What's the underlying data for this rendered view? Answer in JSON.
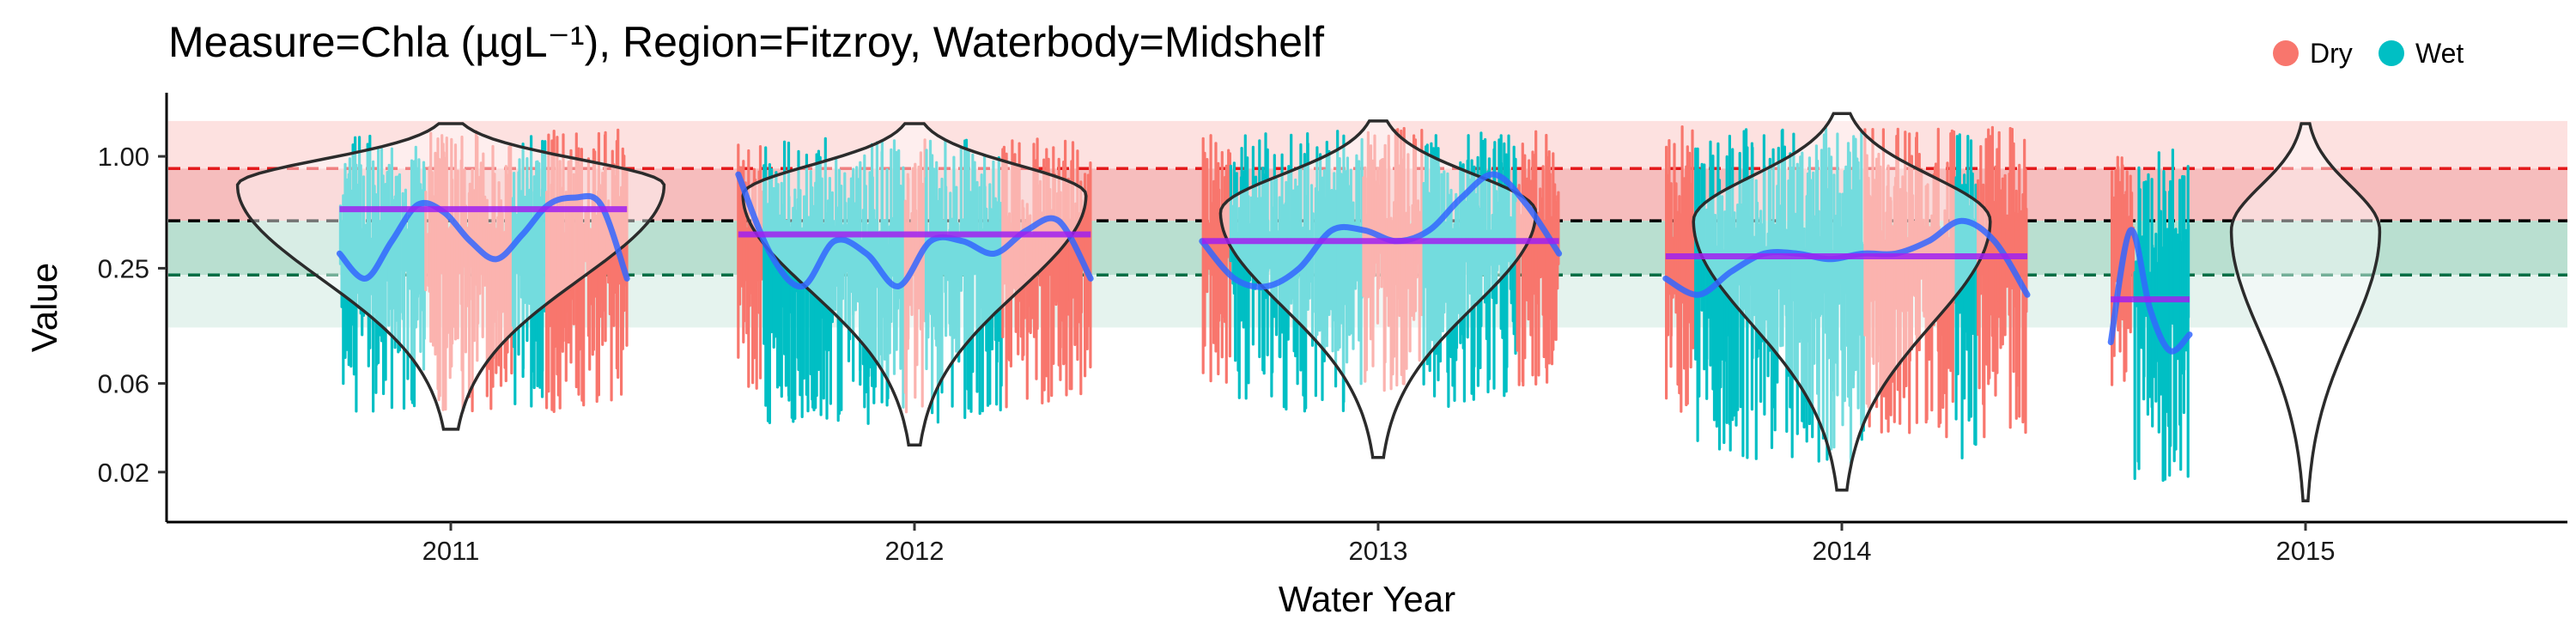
{
  "chart_data": {
    "type": "scatter",
    "title": "Measure=Chla (µgL⁻¹), Region=Fitzroy, Waterbody=Midshelf",
    "xlabel": "Water Year",
    "ylabel": "Value",
    "y_scale": "log",
    "ylim": [
      0.011,
      2.2
    ],
    "x_ticks": [
      "2011",
      "2012",
      "2013",
      "2014",
      "2015"
    ],
    "y_ticks": [
      {
        "value": 1.0,
        "label": "1.00"
      },
      {
        "value": 0.25,
        "label": "0.25"
      },
      {
        "value": 0.06,
        "label": "0.06"
      },
      {
        "value": 0.02,
        "label": "0.02"
      }
    ],
    "legend": {
      "position": "top-right",
      "items": [
        {
          "label": "Dry",
          "color": "#F8766D"
        },
        {
          "label": "Wet",
          "color": "#00BFC4"
        }
      ]
    },
    "reference_lines": [
      {
        "value": 0.86,
        "color": "#E41A1C"
      },
      {
        "value": 0.45,
        "color": "#000000"
      },
      {
        "value": 0.23,
        "color": "#006D44"
      }
    ],
    "bands": [
      {
        "from": 0.86,
        "to": 1.55,
        "color": "#FDE1E0"
      },
      {
        "from": 0.45,
        "to": 0.86,
        "color": "#F6BDBD"
      },
      {
        "from": 0.23,
        "to": 0.45,
        "color": "#B9DFD0"
      },
      {
        "from": 0.12,
        "to": 0.23,
        "color": "#E5F3EE"
      }
    ],
    "years": [
      {
        "year": 2011,
        "start": 2010.76,
        "end": 2011.38,
        "annual_mean": 0.52,
        "segments": [
          [
            "Wet",
            0.0,
            0.3
          ],
          [
            "Dry",
            0.3,
            0.6
          ],
          [
            "Wet",
            0.6,
            0.72
          ],
          [
            "Dry",
            0.72,
            1.0
          ]
        ],
        "dry": {
          "lo": 0.035,
          "hi": 1.5
        },
        "wet": {
          "lo": 0.035,
          "hi": 1.4
        },
        "trend": [
          0.3,
          0.22,
          0.35,
          0.55,
          0.5,
          0.35,
          0.28,
          0.38,
          0.55,
          0.6,
          0.55,
          0.22
        ],
        "violin": {
          "lo": 0.034,
          "hi": 1.5,
          "mode": 0.7,
          "width": 0.46
        }
      },
      {
        "year": 2012,
        "start": 2011.62,
        "end": 2012.38,
        "annual_mean": 0.38,
        "segments": [
          [
            "Dry",
            0.0,
            0.07
          ],
          [
            "Wet",
            0.07,
            0.47
          ],
          [
            "Dry",
            0.47,
            0.53
          ],
          [
            "Wet",
            0.53,
            0.75
          ],
          [
            "Dry",
            0.75,
            1.0
          ]
        ],
        "dry": {
          "lo": 0.035,
          "hi": 1.35
        },
        "wet": {
          "lo": 0.03,
          "hi": 1.35
        },
        "trend": [
          0.8,
          0.3,
          0.2,
          0.35,
          0.3,
          0.2,
          0.35,
          0.35,
          0.3,
          0.4,
          0.45,
          0.22
        ],
        "violin": {
          "lo": 0.028,
          "hi": 1.5,
          "mode": 0.62,
          "width": 0.37
        }
      },
      {
        "year": 2013,
        "start": 2012.62,
        "end": 2013.39,
        "annual_mean": 0.35,
        "segments": [
          [
            "Dry",
            0.0,
            0.08
          ],
          [
            "Wet",
            0.08,
            0.45
          ],
          [
            "Dry",
            0.45,
            0.62
          ],
          [
            "Wet",
            0.62,
            0.88
          ],
          [
            "Dry",
            0.88,
            1.0
          ]
        ],
        "dry": {
          "lo": 0.045,
          "hi": 1.55
        },
        "wet": {
          "lo": 0.035,
          "hi": 1.5
        },
        "trend": [
          0.35,
          0.22,
          0.2,
          0.25,
          0.4,
          0.4,
          0.35,
          0.4,
          0.6,
          0.8,
          0.55,
          0.3
        ],
        "violin": {
          "lo": 0.024,
          "hi": 1.55,
          "mode": 0.5,
          "width": 0.34
        }
      },
      {
        "year": 2014,
        "start": 2013.62,
        "end": 2014.4,
        "annual_mean": 0.29,
        "segments": [
          [
            "Dry",
            0.0,
            0.08
          ],
          [
            "Wet",
            0.08,
            0.55
          ],
          [
            "Dry",
            0.55,
            0.8
          ],
          [
            "Wet",
            0.8,
            0.86
          ],
          [
            "Dry",
            0.86,
            1.0
          ]
        ],
        "dry": {
          "lo": 0.025,
          "hi": 1.6
        },
        "wet": {
          "lo": 0.018,
          "hi": 1.55
        },
        "trend": [
          0.22,
          0.18,
          0.24,
          0.3,
          0.3,
          0.28,
          0.3,
          0.3,
          0.35,
          0.45,
          0.35,
          0.18
        ],
        "violin": {
          "lo": 0.016,
          "hi": 1.7,
          "mode": 0.45,
          "width": 0.32
        }
      },
      {
        "year": 2015,
        "start": 2014.58,
        "end": 2014.75,
        "annual_mean": 0.17,
        "segments": [
          [
            "Dry",
            0.0,
            0.3
          ],
          [
            "Wet",
            0.3,
            1.0
          ]
        ],
        "dry": {
          "lo": 0.05,
          "hi": 1.2
        },
        "wet": {
          "lo": 0.014,
          "hi": 1.2
        },
        "trend": [
          0.1,
          0.4,
          0.15,
          0.09,
          0.11
        ],
        "violin": {
          "lo": 0.014,
          "hi": 1.5,
          "mode": 0.4,
          "width": 0.16
        }
      }
    ]
  }
}
